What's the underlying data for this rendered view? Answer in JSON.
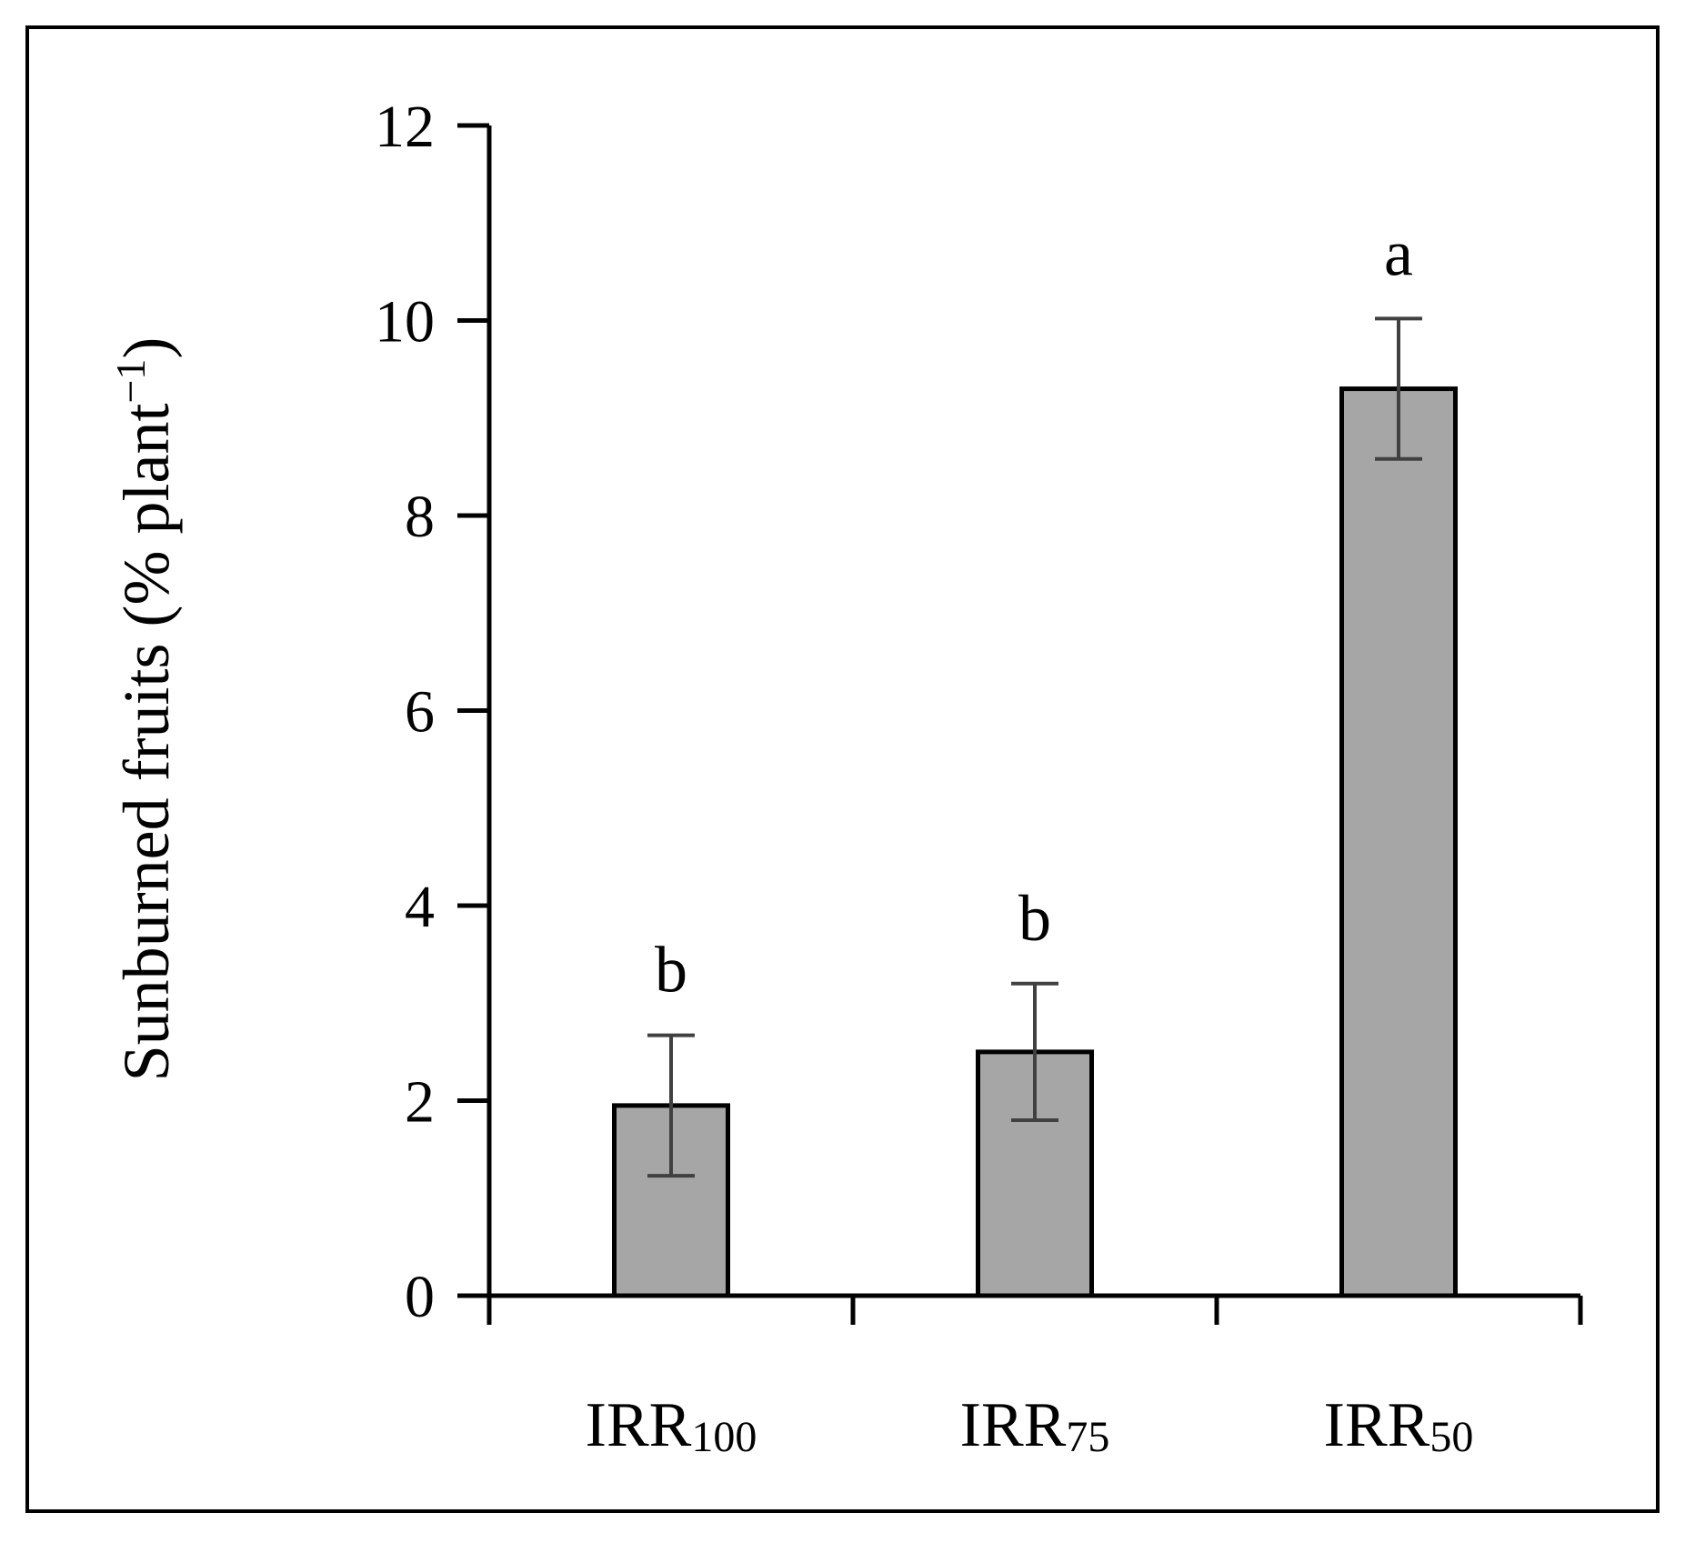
{
  "chart_data": {
    "type": "bar",
    "ylabel": {
      "main": "Sunburned fruits (% plant",
      "superscript": "−1",
      "close": ")"
    },
    "ylim": [
      0,
      12
    ],
    "yticks": [
      "0",
      "2",
      "4",
      "6",
      "8",
      "10",
      "12"
    ],
    "categories": [
      {
        "base": "IRR",
        "sub": "100"
      },
      {
        "base": "IRR",
        "sub": "75"
      },
      {
        "base": "IRR",
        "sub": "50"
      }
    ],
    "values": [
      1.95,
      2.5,
      9.3
    ],
    "errors": [
      0.72,
      0.7,
      0.72
    ],
    "significance_letters": [
      "b",
      "b",
      "a"
    ],
    "bar_color": "#a6a6a6",
    "error_bar_color": "#404040",
    "grid": false,
    "legend": "none"
  }
}
